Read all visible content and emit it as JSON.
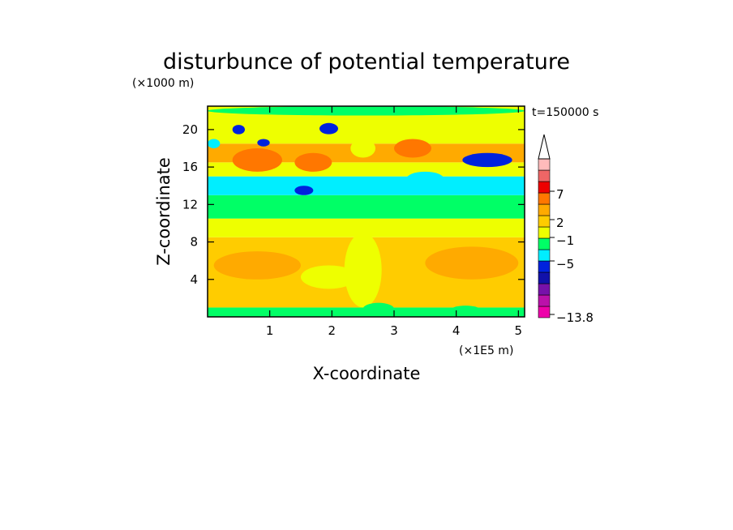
{
  "chart_data": {
    "type": "heatmap",
    "title": "disturbunce of potential temperature",
    "ylabel": "Z-coordinate",
    "xlabel": "X-coordinate",
    "y_unit": "(×1000 m)",
    "x_unit": "(×1E5 m)",
    "time_label": "t=150000 s",
    "xlim": [
      0,
      5.1
    ],
    "ylim": [
      0,
      22.5
    ],
    "x_ticks": [
      1,
      2,
      3,
      4,
      5
    ],
    "x_tick_labels": [
      "1",
      "2",
      "3",
      "4",
      "5"
    ],
    "y_ticks": [
      4,
      8,
      12,
      16,
      20
    ],
    "y_tick_labels": [
      "4",
      "8",
      "12",
      "16",
      "20"
    ],
    "colorbar": {
      "labels": [
        "7",
        "2",
        "−1",
        "−5",
        "−13.8"
      ],
      "colors": [
        "#ee00aa",
        "#bb11aa",
        "#7711aa",
        "#1111aa",
        "#0022dd",
        "#00eeff",
        "#00ff66",
        "#eeff00",
        "#ffcc00",
        "#ffaa00",
        "#ff7700",
        "#ee0000",
        "#ee6666",
        "#ffbbbb"
      ],
      "extend": "max"
    },
    "bands": [
      {
        "z": [
          0,
          1
        ],
        "color": "#00ff66"
      },
      {
        "z": [
          1,
          8.5
        ],
        "color": "#ffcc00"
      },
      {
        "z": [
          8.5,
          10.5
        ],
        "color": "#eeff00"
      },
      {
        "z": [
          10.5,
          13
        ],
        "color": "#00ff66"
      },
      {
        "z": [
          13,
          15
        ],
        "color": "#00eeff"
      },
      {
        "z": [
          15,
          16.5
        ],
        "color": "#eeff00"
      },
      {
        "z": [
          16.5,
          18.5
        ],
        "color": "#ffaa00"
      },
      {
        "z": [
          18.5,
          22.5
        ],
        "color": "#eeff00"
      }
    ],
    "features": [
      {
        "x": [
          0.1,
          1.5
        ],
        "z": [
          4,
          7
        ],
        "color": "#ffaa00"
      },
      {
        "x": [
          3.5,
          5.0
        ],
        "z": [
          4,
          7.5
        ],
        "color": "#ffaa00"
      },
      {
        "x": [
          2.2,
          2.8
        ],
        "z": [
          1,
          9
        ],
        "color": "#eeff00"
      },
      {
        "x": [
          0.4,
          1.2
        ],
        "z": [
          15.5,
          18
        ],
        "color": "#ff7700"
      },
      {
        "x": [
          1.4,
          2.0
        ],
        "z": [
          15.5,
          17.5
        ],
        "color": "#ff7700"
      },
      {
        "x": [
          3.0,
          3.6
        ],
        "z": [
          17,
          19
        ],
        "color": "#ff7700"
      },
      {
        "x": [
          4.1,
          4.9
        ],
        "z": [
          16,
          17.5
        ],
        "color": "#0022dd"
      },
      {
        "x": [
          0.4,
          0.6
        ],
        "z": [
          19.5,
          20.5
        ],
        "color": "#0022dd"
      },
      {
        "x": [
          1.8,
          2.1
        ],
        "z": [
          19.5,
          20.7
        ],
        "color": "#0022dd"
      },
      {
        "x": [
          1.4,
          1.7
        ],
        "z": [
          13,
          14
        ],
        "color": "#0022dd"
      },
      {
        "x": [
          0.8,
          1.0
        ],
        "z": [
          18.2,
          19
        ],
        "color": "#0022dd"
      },
      {
        "x": [
          3.2,
          3.8
        ],
        "z": [
          14,
          15.5
        ],
        "color": "#00eeff"
      },
      {
        "x": [
          0.0,
          0.2
        ],
        "z": [
          18,
          19
        ],
        "color": "#00eeff"
      },
      {
        "x": [
          2.3,
          2.7
        ],
        "z": [
          17,
          19
        ],
        "color": "#eeff00"
      },
      {
        "x": [
          2.5,
          3.0
        ],
        "z": [
          0.2,
          1.5
        ],
        "color": "#00ff66"
      },
      {
        "x": [
          3.9,
          4.4
        ],
        "z": [
          0.2,
          1.2
        ],
        "color": "#00ff66"
      },
      {
        "x": [
          1.5,
          2.4
        ],
        "z": [
          3,
          5.5
        ],
        "color": "#eeff00"
      },
      {
        "x": [
          0.0,
          5.1
        ],
        "z": [
          21.5,
          22.5
        ],
        "color": "#00ff66"
      }
    ]
  }
}
